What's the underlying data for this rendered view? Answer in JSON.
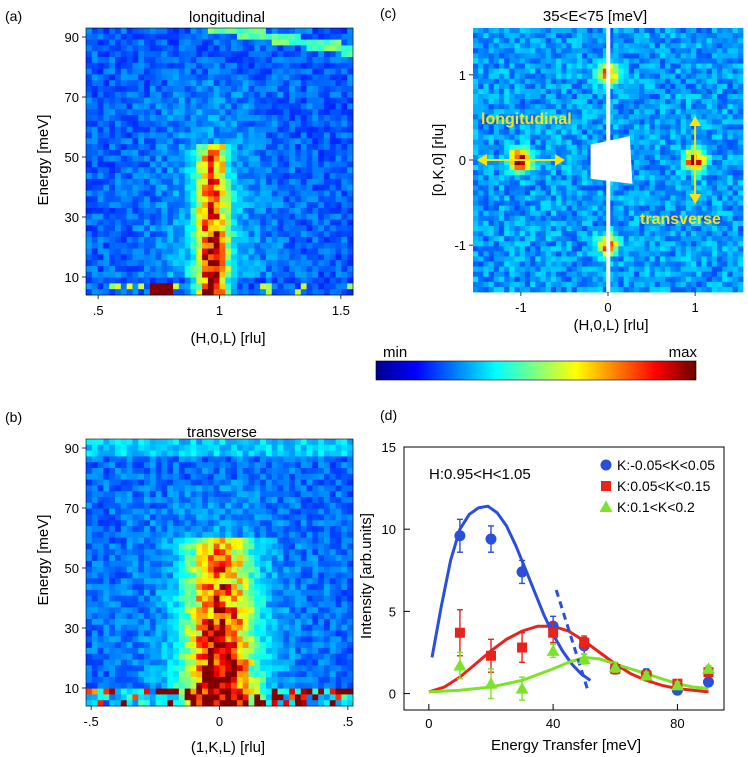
{
  "colors": {
    "blue_curve": "#2a4fd8",
    "red_curve": "#e8231c",
    "green_curve": "#7de32a",
    "arrow": "#f6e40f",
    "label_yellow": "#f6e40f"
  },
  "colorbar": {
    "min_label": "min",
    "max_label": "max"
  },
  "chart_data": [
    {
      "panel": "(a)",
      "type": "heatmap",
      "title": "longitudinal",
      "xlabel": "(H,0,L) [rlu]",
      "ylabel": "Energy [meV]",
      "x_ticks": [
        ".5",
        "1",
        "1.5"
      ],
      "x_tick_values": [
        0.5,
        1.0,
        1.5
      ],
      "y_ticks": [
        "10",
        "30",
        "50",
        "70",
        "90"
      ],
      "y_tick_values": [
        10,
        30,
        50,
        70,
        90
      ],
      "xlim": [
        0.45,
        1.55
      ],
      "ylim": [
        4,
        93
      ],
      "features": [
        {
          "name": "magnon column",
          "x_center": 0.97,
          "energy_range": [
            5,
            55
          ],
          "peak_intensity": "max"
        },
        {
          "name": "spurious streak",
          "x_range": [
            0.98,
            1.52
          ],
          "energy_range": [
            86,
            92
          ]
        }
      ]
    },
    {
      "panel": "(b)",
      "type": "heatmap",
      "title": "transverse",
      "xlabel": "(1,K,L) [rlu]",
      "ylabel": "Energy [meV]",
      "x_ticks": [
        "-.5",
        "0",
        ".5"
      ],
      "x_tick_values": [
        -0.5,
        0.0,
        0.5
      ],
      "y_ticks": [
        "10",
        "30",
        "50",
        "70",
        "90"
      ],
      "y_tick_values": [
        10,
        30,
        50,
        70,
        90
      ],
      "xlim": [
        -0.52,
        0.52
      ],
      "ylim": [
        4,
        93
      ],
      "features": [
        {
          "name": "magnon column",
          "x_center": 0.0,
          "energy_range": [
            5,
            60
          ],
          "peak_intensity": "max"
        }
      ]
    },
    {
      "panel": "(c)",
      "type": "heatmap",
      "title": "35<E<75 [meV]",
      "xlabel": "(H,0,L) [rlu]",
      "ylabel": "[0,K,0] [rlu]",
      "x_ticks": [
        "-1",
        "0",
        "1"
      ],
      "x_tick_values": [
        -1,
        0,
        1
      ],
      "y_ticks": [
        "1",
        "0",
        "-1"
      ],
      "y_tick_values": [
        1,
        0,
        -1
      ],
      "xlim": [
        -1.55,
        1.55
      ],
      "ylim": [
        -1.55,
        1.55
      ],
      "peaks": [
        {
          "h": -1.0,
          "k": 0.0,
          "strength": 1.0
        },
        {
          "h": 1.0,
          "k": 0.0,
          "strength": 0.75
        },
        {
          "h": 0.0,
          "k": 1.0,
          "strength": 0.6
        },
        {
          "h": 0.0,
          "k": -1.0,
          "strength": 0.6
        }
      ],
      "annotations": {
        "longitudinal": "longitudinal",
        "transverse": "transverse"
      }
    },
    {
      "panel": "(d)",
      "type": "scatter",
      "xlabel": "Energy Transfer [meV]",
      "ylabel": "Intensity [arb.units]",
      "annotation": "H:0.95<H<1.05",
      "x_ticks": [
        "0",
        "40",
        "80"
      ],
      "x_tick_values": [
        0,
        40,
        80
      ],
      "y_ticks": [
        "0",
        "5",
        "10",
        "15"
      ],
      "y_tick_values": [
        0,
        5,
        10,
        15
      ],
      "xlim": [
        -8,
        95
      ],
      "ylim": [
        -1,
        15
      ],
      "series": [
        {
          "name": "K:-0.05<K<0.05",
          "marker": "circle",
          "color": "#2a4fd8",
          "points": [
            {
              "x": 10,
              "y": 9.6,
              "err": 1.0
            },
            {
              "x": 20,
              "y": 9.4,
              "err": 0.8
            },
            {
              "x": 30,
              "y": 7.4,
              "err": 0.7
            },
            {
              "x": 40,
              "y": 4.1,
              "err": 0.6
            },
            {
              "x": 50,
              "y": 2.9,
              "err": 0.5
            },
            {
              "x": 60,
              "y": 1.5,
              "err": 0.3
            },
            {
              "x": 70,
              "y": 1.2,
              "err": 0.3
            },
            {
              "x": 80,
              "y": 0.2,
              "err": 0.2
            },
            {
              "x": 90,
              "y": 0.7,
              "err": 0.2
            }
          ],
          "fit_curve": [
            [
              1,
              2.2
            ],
            [
              4,
              5.3
            ],
            [
              7,
              8.1
            ],
            [
              10,
              10.0
            ],
            [
              13,
              10.9
            ],
            [
              16,
              11.3
            ],
            [
              19,
              11.4
            ],
            [
              22,
              11.0
            ],
            [
              25,
              10.2
            ],
            [
              28,
              9.0
            ],
            [
              31,
              7.6
            ],
            [
              34,
              6.2
            ],
            [
              37,
              4.8
            ],
            [
              40,
              3.6
            ],
            [
              43,
              2.6
            ],
            [
              46,
              1.8
            ],
            [
              49,
              1.2
            ],
            [
              52,
              0.8
            ]
          ]
        },
        {
          "name": "K:0.05<K<0.15",
          "marker": "square",
          "color": "#e8231c",
          "points": [
            {
              "x": 10,
              "y": 3.7,
              "err": 1.4
            },
            {
              "x": 20,
              "y": 2.3,
              "err": 1.0
            },
            {
              "x": 30,
              "y": 2.8,
              "err": 0.9
            },
            {
              "x": 40,
              "y": 3.7,
              "err": 0.6
            },
            {
              "x": 50,
              "y": 3.1,
              "err": 0.4
            },
            {
              "x": 60,
              "y": 1.5,
              "err": 0.3
            },
            {
              "x": 70,
              "y": 1.1,
              "err": 0.3
            },
            {
              "x": 80,
              "y": 0.6,
              "err": 0.2
            },
            {
              "x": 90,
              "y": 1.3,
              "err": 0.3
            }
          ],
          "fit_curve": [
            [
              0,
              0.1
            ],
            [
              5,
              0.4
            ],
            [
              10,
              1.0
            ],
            [
              15,
              1.8
            ],
            [
              20,
              2.6
            ],
            [
              25,
              3.3
            ],
            [
              30,
              3.8
            ],
            [
              35,
              4.1
            ],
            [
              40,
              4.1
            ],
            [
              45,
              3.8
            ],
            [
              50,
              3.2
            ],
            [
              55,
              2.5
            ],
            [
              60,
              1.8
            ],
            [
              65,
              1.2
            ],
            [
              70,
              0.8
            ],
            [
              75,
              0.5
            ],
            [
              80,
              0.3
            ],
            [
              85,
              0.2
            ],
            [
              90,
              0.1
            ]
          ]
        },
        {
          "name": "K:0.1<K<0.2",
          "marker": "triangle",
          "color": "#7de32a",
          "points": [
            {
              "x": 10,
              "y": 1.7,
              "err": 0.8
            },
            {
              "x": 20,
              "y": 0.6,
              "err": 0.9
            },
            {
              "x": 30,
              "y": 0.3,
              "err": 0.7
            },
            {
              "x": 40,
              "y": 2.6,
              "err": 0.4
            },
            {
              "x": 50,
              "y": 2.1,
              "err": 0.3
            },
            {
              "x": 60,
              "y": 1.6,
              "err": 0.3
            },
            {
              "x": 70,
              "y": 1.1,
              "err": 0.2
            },
            {
              "x": 80,
              "y": 0.5,
              "err": 0.2
            },
            {
              "x": 90,
              "y": 1.5,
              "err": 0.2
            }
          ],
          "fit_curve": [
            [
              0,
              0.1
            ],
            [
              10,
              0.2
            ],
            [
              20,
              0.4
            ],
            [
              30,
              0.8
            ],
            [
              40,
              1.5
            ],
            [
              45,
              1.9
            ],
            [
              50,
              2.2
            ],
            [
              55,
              2.1
            ],
            [
              60,
              1.8
            ],
            [
              65,
              1.5
            ],
            [
              70,
              1.2
            ],
            [
              75,
              0.9
            ],
            [
              80,
              0.6
            ],
            [
              85,
              0.4
            ],
            [
              90,
              0.3
            ]
          ]
        }
      ],
      "dashed_line": [
        [
          41,
          6.3
        ],
        [
          51,
          0.3
        ]
      ]
    }
  ]
}
